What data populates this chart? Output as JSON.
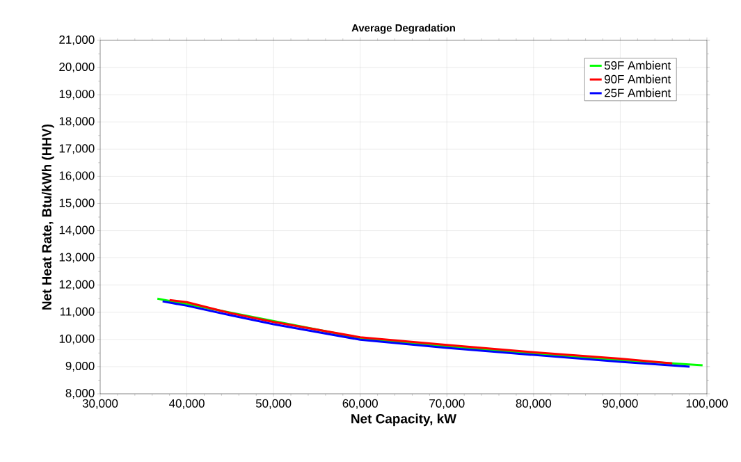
{
  "chart_data": {
    "type": "line",
    "title": "Average Degradation",
    "xlabel": "Net Capacity, kW",
    "ylabel": "Net Heat Rate, Btu/kWh (HHV)",
    "xlim": [
      30000,
      100000
    ],
    "xticks": [
      {
        "value": 30000,
        "label": "30,000"
      },
      {
        "value": 40000,
        "label": "40,000"
      },
      {
        "value": 50000,
        "label": "50,000"
      },
      {
        "value": 60000,
        "label": "60,000"
      },
      {
        "value": 70000,
        "label": "70,000"
      },
      {
        "value": 80000,
        "label": "80,000"
      },
      {
        "value": 90000,
        "label": "90,000"
      },
      {
        "value": 100000,
        "label": "100,000"
      }
    ],
    "ylim": [
      8000,
      21000
    ],
    "yticks": [
      {
        "value": 8000,
        "label": "8,000"
      },
      {
        "value": 9000,
        "label": "9,000"
      },
      {
        "value": 10000,
        "label": "10,000"
      },
      {
        "value": 11000,
        "label": "11,000"
      },
      {
        "value": 12000,
        "label": "12,000"
      },
      {
        "value": 13000,
        "label": "13,000"
      },
      {
        "value": 14000,
        "label": "14,000"
      },
      {
        "value": 15000,
        "label": "15,000"
      },
      {
        "value": 16000,
        "label": "16,000"
      },
      {
        "value": 17000,
        "label": "17,000"
      },
      {
        "value": 18000,
        "label": "18,000"
      },
      {
        "value": 19000,
        "label": "19,000"
      },
      {
        "value": 20000,
        "label": "20,000"
      },
      {
        "value": 21000,
        "label": "21,000"
      }
    ],
    "grid": true,
    "legend": "top right",
    "marker": "none",
    "line_style": "solid",
    "series": [
      {
        "name": "59F Ambient",
        "color": "#00ff00",
        "x": [
          36600,
          40000,
          45000,
          50000,
          60000,
          70000,
          80000,
          90000,
          99500
        ],
        "values": [
          11500,
          11300,
          null,
          null,
          10050,
          9750,
          9480,
          9240,
          9050
        ]
      },
      {
        "name": "90F Ambient",
        "color": "#ff0000",
        "x": [
          38000,
          40000,
          45000,
          50000,
          60000,
          70000,
          80000,
          90000,
          96000
        ],
        "values": [
          11450,
          11370,
          10970,
          10640,
          10080,
          9800,
          9530,
          9290,
          9120
        ]
      },
      {
        "name": "25F Ambient",
        "color": "#0000ff",
        "x": [
          37200,
          40000,
          45000,
          50000,
          60000,
          70000,
          80000,
          90000,
          98000
        ],
        "values": [
          11400,
          11240,
          10890,
          10560,
          9990,
          9690,
          9430,
          9180,
          9000
        ]
      }
    ]
  }
}
